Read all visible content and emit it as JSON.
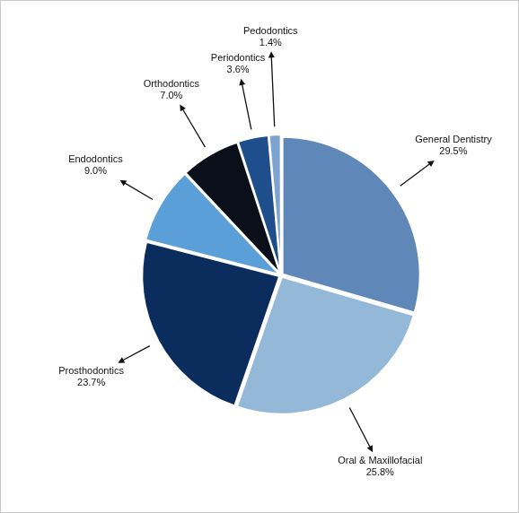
{
  "chart_data": {
    "type": "pie",
    "categories": [
      "General Dentistry",
      "Oral & Maxillofacial",
      "Prosthodontics",
      "Endodontics",
      "Orthodontics",
      "Periodontics",
      "Pedodontics"
    ],
    "values": [
      29.5,
      25.8,
      23.7,
      9.0,
      7.0,
      3.6,
      1.4
    ],
    "value_labels": [
      "29.5%",
      "25.8%",
      "23.7%",
      "9.0%",
      "7.0%",
      "3.6%",
      "1.4%"
    ],
    "colors": [
      "#5f88b8",
      "#93b8d8",
      "#0b2d5e",
      "#5b9fd8",
      "#0a0f1a",
      "#1f4e8c",
      "#7fa3d0"
    ],
    "data_labels": true
  }
}
